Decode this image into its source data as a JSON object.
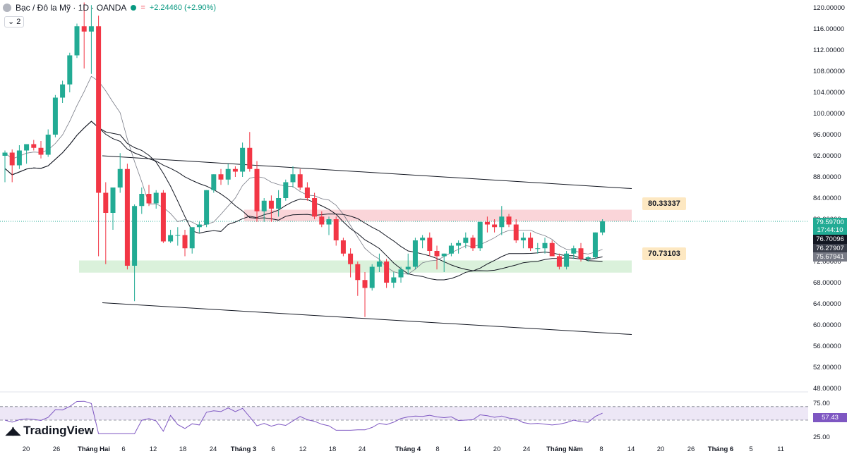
{
  "header": {
    "symbol": "Bạc / Đô la Mỹ · 1D · OANDA",
    "change": "+2.24460 (+2.90%)",
    "indicator_count": "2",
    "status_color": "#089981"
  },
  "colors": {
    "up": "#22ab94",
    "down": "#f23645",
    "resistance_zone": "#f8c7cc",
    "support_zone": "#cdeccf",
    "rsi_line": "#7e57c2",
    "rsi_band": "#ede7f6"
  },
  "price_axis": {
    "ticks": [
      "120.00000",
      "116.00000",
      "112.00000",
      "108.00000",
      "104.00000",
      "100.00000",
      "96.00000",
      "92.00000",
      "88.00000",
      "84.00000",
      "80.00000",
      "76.00000",
      "72.00000",
      "68.00000",
      "64.00000",
      "60.00000",
      "56.00000",
      "52.00000",
      "48.00000"
    ]
  },
  "rsi_axis": {
    "ticks": [
      "75.00",
      "50.00",
      "25.00"
    ]
  },
  "time_axis": {
    "ticks": [
      "20",
      "26",
      "Tháng Hai",
      "6",
      "12",
      "18",
      "24",
      "Tháng 3",
      "6",
      "12",
      "18",
      "24",
      "Tháng 4",
      "8",
      "14",
      "20",
      "24",
      "Tháng Năm",
      "8",
      "14",
      "20",
      "26",
      "Tháng 6",
      "5",
      "11"
    ]
  },
  "labels": {
    "last_price": "79.59700",
    "countdown": "17:44:10",
    "ma1": "76.70096",
    "ma2": "76.27907",
    "ma3": "75.67941",
    "rsi_value": "57.43",
    "resistance": "80.33337",
    "support": "70.73103",
    "brand": "TradingView"
  },
  "chart_data": {
    "type": "candlestick",
    "title": "Bạc / Đô la Mỹ · 1D · OANDA",
    "ylim": [
      48,
      120
    ],
    "grid": false,
    "legend": "top-left",
    "zones": [
      {
        "name": "80.33337",
        "from": 79.6,
        "to": 81.8
      },
      {
        "name": "70.73103",
        "from": 69.9,
        "to": 72.2
      }
    ],
    "channel": {
      "upper": [
        [
          92.0,
          85.8
        ]
      ],
      "lower": [
        [
          64.2,
          58.2
        ]
      ]
    },
    "candles": [
      [
        92.0,
        93.0,
        87.0,
        92.6
      ],
      [
        92.6,
        93.2,
        87.0,
        90.2
      ],
      [
        90.2,
        94.0,
        89.5,
        93.0
      ],
      [
        93.0,
        94.0,
        90.5,
        94.2
      ],
      [
        94.2,
        95.0,
        93.0,
        93.5
      ],
      [
        93.5,
        94.8,
        91.5,
        92.2
      ],
      [
        92.2,
        97.0,
        91.8,
        96.0
      ],
      [
        96.0,
        103.5,
        95.5,
        103.0
      ],
      [
        103.0,
        106.2,
        102.0,
        105.5
      ],
      [
        105.5,
        111.5,
        104.0,
        111.0
      ],
      [
        111.0,
        117.0,
        110.5,
        116.5
      ],
      [
        116.5,
        121.0,
        108.5,
        115.5
      ],
      [
        115.5,
        120.5,
        107.5,
        116.5
      ],
      [
        116.5,
        118.5,
        73.0,
        85.0
      ],
      [
        85.0,
        87.0,
        71.5,
        81.2
      ],
      [
        81.2,
        86.0,
        78.0,
        86.0
      ],
      [
        86.0,
        92.5,
        85.0,
        89.5
      ],
      [
        89.5,
        90.5,
        70.5,
        71.2
      ],
      [
        71.2,
        82.8,
        64.5,
        82.5
      ],
      [
        82.5,
        86.0,
        81.0,
        84.8
      ],
      [
        84.8,
        86.5,
        82.5,
        83.0
      ],
      [
        83.0,
        85.5,
        82.0,
        85.0
      ],
      [
        85.0,
        85.5,
        75.5,
        75.8
      ],
      [
        75.8,
        78.0,
        75.5,
        77.0
      ],
      [
        77.0,
        78.5,
        75.0,
        77.0
      ],
      [
        77.0,
        78.0,
        73.0,
        74.5
      ],
      [
        74.5,
        78.0,
        73.5,
        78.5
      ],
      [
        78.5,
        79.5,
        77.5,
        79.0
      ],
      [
        79.0,
        85.5,
        78.5,
        85.5
      ],
      [
        85.5,
        88.5,
        85.0,
        88.5
      ],
      [
        88.5,
        89.5,
        86.5,
        87.5
      ],
      [
        87.5,
        90.5,
        86.5,
        89.5
      ],
      [
        89.5,
        90.0,
        88.0,
        89.0
      ],
      [
        89.0,
        94.5,
        88.0,
        93.5
      ],
      [
        93.5,
        96.5,
        89.0,
        89.5
      ],
      [
        89.5,
        91.0,
        79.5,
        81.5
      ],
      [
        81.5,
        84.0,
        79.5,
        83.5
      ],
      [
        83.5,
        84.5,
        79.5,
        82.0
      ],
      [
        82.0,
        85.5,
        80.5,
        84.0
      ],
      [
        84.0,
        87.5,
        83.5,
        87.0
      ],
      [
        87.0,
        90.0,
        86.0,
        88.5
      ],
      [
        88.5,
        89.5,
        85.5,
        86.0
      ],
      [
        86.0,
        87.0,
        83.5,
        84.0
      ],
      [
        84.0,
        85.0,
        80.0,
        80.5
      ],
      [
        80.5,
        81.5,
        78.5,
        79.0
      ],
      [
        79.0,
        80.5,
        77.0,
        80.0
      ],
      [
        80.0,
        80.5,
        75.0,
        76.0
      ],
      [
        76.0,
        76.5,
        73.0,
        73.5
      ],
      [
        73.5,
        74.5,
        69.0,
        71.5
      ],
      [
        71.5,
        72.0,
        65.5,
        68.5
      ],
      [
        68.5,
        70.0,
        61.5,
        67.0
      ],
      [
        67.0,
        71.5,
        66.5,
        71.0
      ],
      [
        71.0,
        73.5,
        70.0,
        72.0
      ],
      [
        72.0,
        72.5,
        67.0,
        68.0
      ],
      [
        68.0,
        70.0,
        67.0,
        69.0
      ],
      [
        69.0,
        71.0,
        68.0,
        70.5
      ],
      [
        70.5,
        73.5,
        69.5,
        71.0
      ],
      [
        71.0,
        76.5,
        70.5,
        76.0
      ],
      [
        76.0,
        77.0,
        74.5,
        76.5
      ],
      [
        76.5,
        77.5,
        73.0,
        74.0
      ],
      [
        74.0,
        75.0,
        70.5,
        73.0
      ],
      [
        73.0,
        73.5,
        70.0,
        73.5
      ],
      [
        73.5,
        75.5,
        73.0,
        75.0
      ],
      [
        75.0,
        76.0,
        73.5,
        75.5
      ],
      [
        75.5,
        77.5,
        74.5,
        76.5
      ],
      [
        76.5,
        77.0,
        74.0,
        74.5
      ],
      [
        74.5,
        79.5,
        74.0,
        79.5
      ],
      [
        79.5,
        80.5,
        77.5,
        79.0
      ],
      [
        79.0,
        80.0,
        77.5,
        78.5
      ],
      [
        78.5,
        82.5,
        77.0,
        80.5
      ],
      [
        80.5,
        81.0,
        78.5,
        79.0
      ],
      [
        79.0,
        80.0,
        75.5,
        76.0
      ],
      [
        76.0,
        77.5,
        74.5,
        76.5
      ],
      [
        76.5,
        77.5,
        74.0,
        74.5
      ],
      [
        74.5,
        75.5,
        73.5,
        74.5
      ],
      [
        74.5,
        76.5,
        73.5,
        75.5
      ],
      [
        75.5,
        76.0,
        73.0,
        73.0
      ],
      [
        73.0,
        73.5,
        70.5,
        71.0
      ],
      [
        71.0,
        74.0,
        70.5,
        73.5
      ],
      [
        73.5,
        75.0,
        72.5,
        74.5
      ],
      [
        74.5,
        75.5,
        72.0,
        72.5
      ],
      [
        72.5,
        73.0,
        72.0,
        72.8
      ],
      [
        72.8,
        77.5,
        72.5,
        77.5
      ],
      [
        77.5,
        80.0,
        77.0,
        79.6
      ]
    ],
    "moving_averages": [
      {
        "name": "76.70096",
        "last": 76.70096
      },
      {
        "name": "76.27907",
        "last": 76.27907
      },
      {
        "name": "75.67941",
        "last": 75.67941
      }
    ],
    "rsi": {
      "ylim": [
        25,
        75
      ],
      "levels": [
        70,
        50
      ],
      "last": 57.43
    }
  }
}
